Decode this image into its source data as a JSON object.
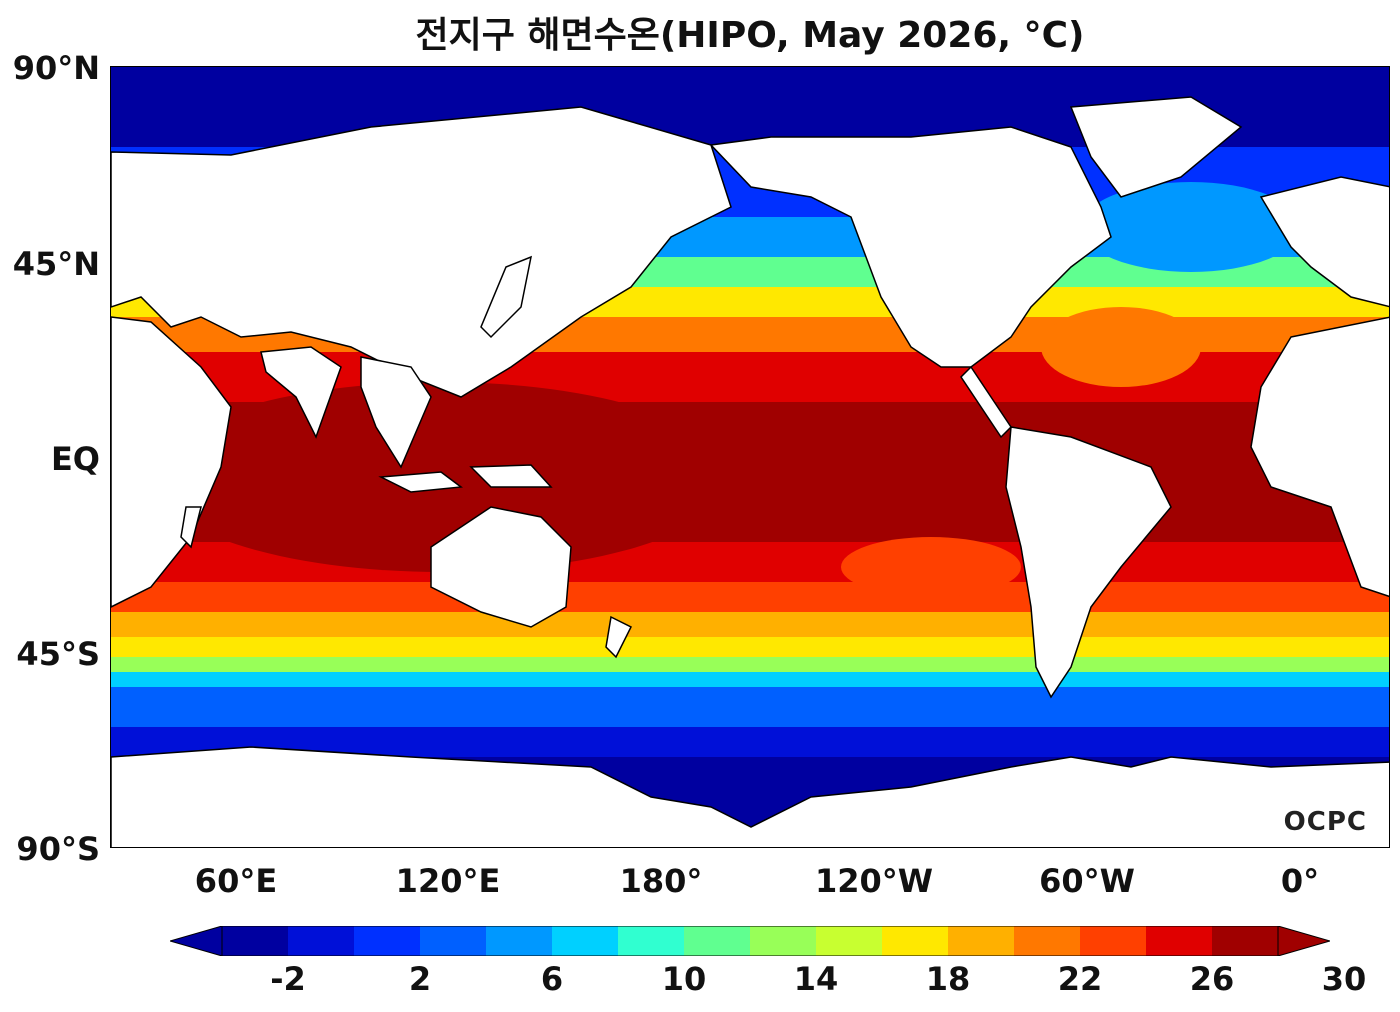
{
  "title": "전지구 해면수온(HIPO, May 2026, °C)",
  "axes": {
    "lat_labels": [
      "90°N",
      "45°N",
      "EQ",
      "45°S",
      "90°S"
    ],
    "lon_labels": [
      "60°E",
      "120°E",
      "180°",
      "120°W",
      "60°W",
      "0°"
    ]
  },
  "colorbar": {
    "tick_labels": [
      "-2",
      "2",
      "6",
      "10",
      "14",
      "18",
      "22",
      "26",
      "30"
    ],
    "colors": [
      "#0000a0",
      "#0010d8",
      "#0030ff",
      "#0060ff",
      "#0098ff",
      "#00d0ff",
      "#30ffd0",
      "#60ff90",
      "#98ff58",
      "#c8ff30",
      "#ffe800",
      "#ffb000",
      "#ff7800",
      "#ff4000",
      "#e00000",
      "#a00000"
    ],
    "extend": "both"
  },
  "logo": "OCPC"
}
